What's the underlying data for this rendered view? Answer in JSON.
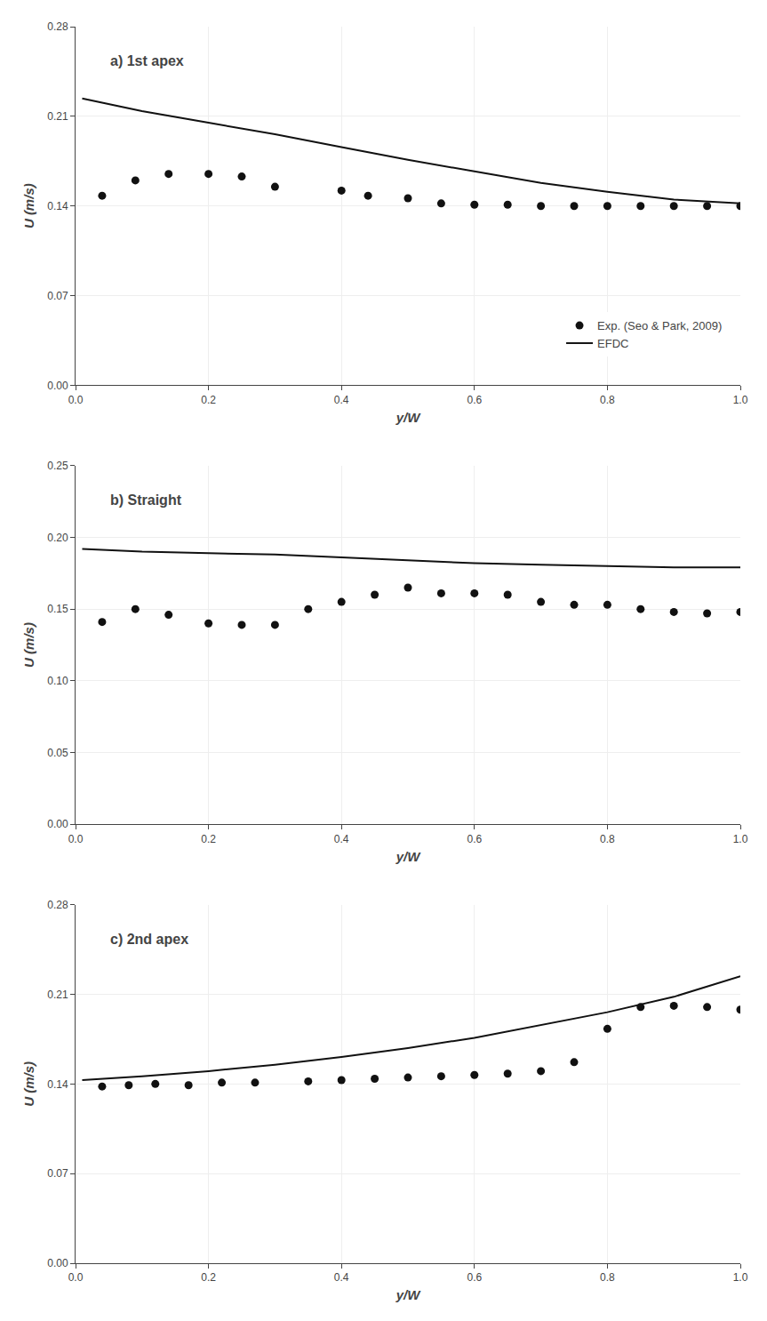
{
  "chart_data": [
    {
      "type": "line",
      "title": "a) 1st apex",
      "xlabel": "y/W",
      "ylabel": "U (m/s)",
      "xlim": [
        0.0,
        1.0
      ],
      "xticks": [
        {
          "value": 0.0,
          "label": "0.0"
        },
        0.2,
        0.4,
        0.6,
        0.8,
        {
          "value": 1.0,
          "label": "1.0"
        }
      ],
      "ylim": [
        0.0,
        0.28
      ],
      "yticks": [
        {
          "value": 0.0,
          "label": "0.00"
        },
        0.07,
        0.14,
        0.21,
        0.28
      ],
      "grid": true,
      "legend": "lower right",
      "series": [
        {
          "name": "EFDC",
          "type": "line",
          "line_style": "solid",
          "color": "#111111",
          "x": [
            0.01,
            0.1,
            0.2,
            0.3,
            0.4,
            0.5,
            0.6,
            0.7,
            0.8,
            0.9,
            1.0
          ],
          "values": [
            0.224,
            0.214,
            0.205,
            0.196,
            0.186,
            0.176,
            0.167,
            0.158,
            0.151,
            0.145,
            0.142
          ]
        },
        {
          "name": "Exp. (Seo & Park, 2009)",
          "type": "scatter",
          "marker": "circle",
          "color": "#111111",
          "x": [
            0.04,
            0.09,
            0.14,
            0.2,
            0.25,
            0.3,
            0.4,
            0.44,
            0.5,
            0.55,
            0.6,
            0.65,
            0.7,
            0.75,
            0.8,
            0.85,
            0.9,
            0.95,
            1.0
          ],
          "values": [
            0.148,
            0.16,
            0.165,
            0.165,
            0.163,
            0.155,
            0.152,
            0.148,
            0.146,
            0.142,
            0.141,
            0.141,
            0.14,
            0.14,
            0.14,
            0.14,
            0.14,
            0.14,
            0.14
          ]
        }
      ]
    },
    {
      "type": "line",
      "title": "b) Straight",
      "xlabel": "y/W",
      "ylabel": "U (m/s)",
      "xlim": [
        0.0,
        1.0
      ],
      "xticks": [
        {
          "value": 0.0,
          "label": "0.0"
        },
        0.2,
        0.4,
        0.6,
        0.8,
        {
          "value": 1.0,
          "label": "1.0"
        }
      ],
      "ylim": [
        0.0,
        0.25
      ],
      "yticks": [
        {
          "value": 0.0,
          "label": "0.00"
        },
        0.05,
        {
          "value": 0.1,
          "label": "0.10"
        },
        0.15,
        {
          "value": 0.2,
          "label": "0.20"
        },
        0.25
      ],
      "grid": true,
      "series": [
        {
          "name": "EFDC",
          "type": "line",
          "line_style": "solid",
          "color": "#111111",
          "x": [
            0.01,
            0.1,
            0.2,
            0.3,
            0.4,
            0.5,
            0.6,
            0.7,
            0.8,
            0.9,
            1.0
          ],
          "values": [
            0.192,
            0.19,
            0.189,
            0.188,
            0.186,
            0.184,
            0.182,
            0.181,
            0.18,
            0.179,
            0.179
          ]
        },
        {
          "name": "Exp. (Seo & Park, 2009)",
          "type": "scatter",
          "marker": "circle",
          "color": "#111111",
          "x": [
            0.04,
            0.09,
            0.14,
            0.2,
            0.25,
            0.3,
            0.35,
            0.4,
            0.45,
            0.5,
            0.55,
            0.6,
            0.65,
            0.7,
            0.75,
            0.8,
            0.85,
            0.9,
            0.95,
            1.0
          ],
          "values": [
            0.141,
            0.15,
            0.146,
            0.14,
            0.139,
            0.139,
            0.15,
            0.155,
            0.16,
            0.165,
            0.161,
            0.161,
            0.16,
            0.155,
            0.153,
            0.153,
            0.15,
            0.148,
            0.147,
            0.148
          ]
        }
      ]
    },
    {
      "type": "line",
      "title": "c) 2nd apex",
      "xlabel": "y/W",
      "ylabel": "U (m/s)",
      "xlim": [
        0.0,
        1.0
      ],
      "xticks": [
        {
          "value": 0.0,
          "label": "0.0"
        },
        0.2,
        0.4,
        0.6,
        0.8,
        {
          "value": 1.0,
          "label": "1.0"
        }
      ],
      "ylim": [
        0.0,
        0.28
      ],
      "yticks": [
        {
          "value": 0.0,
          "label": "0.00"
        },
        0.07,
        0.14,
        0.21,
        0.28
      ],
      "grid": true,
      "series": [
        {
          "name": "EFDC",
          "type": "line",
          "line_style": "solid",
          "color": "#111111",
          "x": [
            0.01,
            0.1,
            0.2,
            0.3,
            0.4,
            0.5,
            0.6,
            0.7,
            0.8,
            0.9,
            1.0
          ],
          "values": [
            0.143,
            0.146,
            0.15,
            0.155,
            0.161,
            0.168,
            0.176,
            0.186,
            0.196,
            0.208,
            0.224
          ]
        },
        {
          "name": "Exp. (Seo & Park, 2009)",
          "type": "scatter",
          "marker": "circle",
          "color": "#111111",
          "x": [
            0.04,
            0.08,
            0.12,
            0.17,
            0.22,
            0.27,
            0.35,
            0.4,
            0.45,
            0.5,
            0.55,
            0.6,
            0.65,
            0.7,
            0.75,
            0.8,
            0.85,
            0.9,
            0.95,
            1.0
          ],
          "values": [
            0.138,
            0.139,
            0.14,
            0.139,
            0.141,
            0.141,
            0.142,
            0.143,
            0.144,
            0.145,
            0.146,
            0.147,
            0.148,
            0.15,
            0.157,
            0.183,
            0.2,
            0.201,
            0.2,
            0.198
          ]
        }
      ]
    }
  ]
}
